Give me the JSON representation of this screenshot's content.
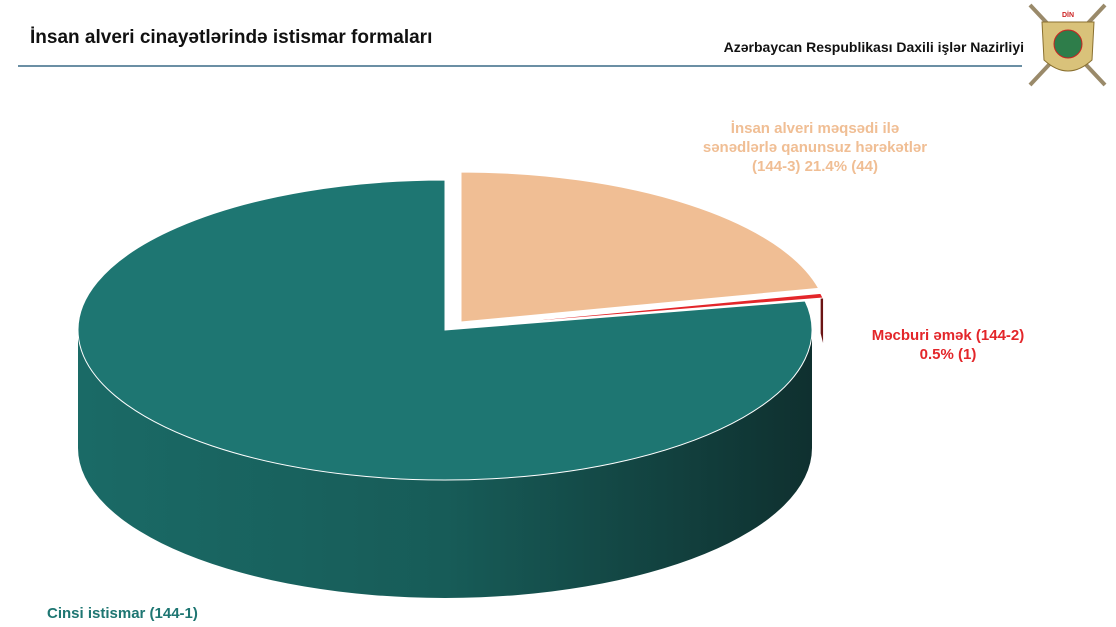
{
  "header": {
    "title": "İnsan alveri cinayətlərində istismar formaları",
    "organization": "Azərbaycan Respublikası Daxili işlər Nazirliyi",
    "emblem_text": "DİN"
  },
  "chart_data": {
    "type": "pie",
    "categories": [
      "İnsan alveri məqsədi ilə sənədlərlə qanunsuz hərəkətlər (144-3)",
      "Məcburi əmək (144-2)",
      "Cinsi istismar (144-1)"
    ],
    "values": [
      21.4,
      0.5,
      78.1
    ],
    "value_labels": [
      "21.4% (44)",
      "0.5% (1)",
      null
    ],
    "colors": [
      "#f0be94",
      "#e3262a",
      "#1e7672"
    ]
  }
}
